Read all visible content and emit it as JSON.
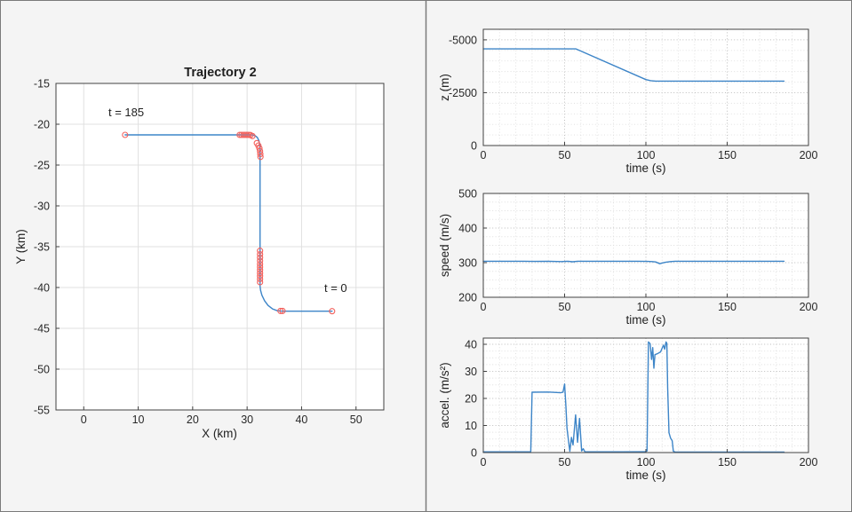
{
  "figure": {
    "background": "#f4f4f4",
    "border_color": "#7a7a7a",
    "divider_color": "#7a7a7a"
  },
  "colors": {
    "line_blue": "#3d85c8",
    "marker_red": "#f2605c",
    "text": "#282828",
    "spine": "#424242",
    "grid_solid": "#e0e0e0",
    "grid_major_dotted": "#bdbdbd",
    "grid_minor_dotted": "#dedede",
    "plot_bg": "#ffffff"
  },
  "chart_data": [
    {
      "id": "trajectory",
      "type": "line",
      "title": "Trajectory 2",
      "xlabel": "X (km)",
      "ylabel": "Y (km)",
      "xlim": [
        -5.1,
        55.1
      ],
      "ylim": [
        -55,
        -15
      ],
      "xticks": [
        0,
        10,
        20,
        30,
        40,
        50
      ],
      "yticks": [
        -55,
        -50,
        -45,
        -40,
        -35,
        -30,
        -25,
        -20,
        -15
      ],
      "grid": "solid",
      "annotations": [
        {
          "text": "t = 185",
          "x": 4.5,
          "y": -19.0
        },
        {
          "text": "t = 0",
          "x": 44.2,
          "y": -40.5
        }
      ],
      "path_xy": [
        [
          45.6,
          -42.9
        ],
        [
          36.5,
          -42.9
        ],
        [
          35.55,
          -42.85
        ],
        [
          34.65,
          -42.62
        ],
        [
          33.85,
          -42.2
        ],
        [
          33.2,
          -41.62
        ],
        [
          32.72,
          -40.95
        ],
        [
          32.47,
          -40.35
        ],
        [
          32.38,
          -39.8
        ],
        [
          32.38,
          -23.05
        ],
        [
          32.33,
          -22.5
        ],
        [
          32.17,
          -22.0
        ],
        [
          31.88,
          -21.62
        ],
        [
          31.48,
          -21.4
        ],
        [
          31.0,
          -21.32
        ],
        [
          30.5,
          -21.3
        ],
        [
          7.6,
          -21.3
        ]
      ],
      "markers_xy": [
        [
          45.6,
          -42.9
        ],
        [
          36.5,
          -42.87
        ],
        [
          36.12,
          -42.87
        ],
        [
          32.38,
          -39.35
        ],
        [
          32.38,
          -38.97
        ],
        [
          32.38,
          -38.6
        ],
        [
          32.38,
          -38.23
        ],
        [
          32.38,
          -37.86
        ],
        [
          32.38,
          -37.49
        ],
        [
          32.38,
          -37.12
        ],
        [
          32.38,
          -36.73
        ],
        [
          32.38,
          -36.33
        ],
        [
          32.38,
          -35.92
        ],
        [
          32.38,
          -35.5
        ],
        [
          32.46,
          -24.0
        ],
        [
          32.43,
          -23.65
        ],
        [
          32.38,
          -23.3
        ],
        [
          32.26,
          -22.95
        ],
        [
          32.06,
          -22.62
        ],
        [
          31.78,
          -22.32
        ],
        [
          30.97,
          -21.45
        ],
        [
          30.62,
          -21.33
        ],
        [
          30.29,
          -21.3
        ],
        [
          29.96,
          -21.3
        ],
        [
          29.63,
          -21.3
        ],
        [
          29.3,
          -21.3
        ],
        [
          28.97,
          -21.3
        ],
        [
          28.64,
          -21.3
        ],
        [
          7.6,
          -21.3
        ]
      ]
    },
    {
      "id": "z",
      "type": "line",
      "xlabel": "time (s)",
      "ylabel": "z (m)",
      "xlim": [
        0,
        200
      ],
      "ylim": [
        0,
        -5500
      ],
      "xticks": [
        0,
        50,
        100,
        150,
        200
      ],
      "yticks": [
        0,
        -2500,
        -5000
      ],
      "grid": "dotted",
      "minor_x": 10,
      "minor_y": 500,
      "points": [
        [
          0,
          -4572
        ],
        [
          57,
          -4572
        ],
        [
          100,
          -3120
        ],
        [
          103,
          -3070
        ],
        [
          106,
          -3048
        ],
        [
          185,
          -3048
        ]
      ]
    },
    {
      "id": "speed",
      "type": "line",
      "xlabel": "time (s)",
      "ylabel": "speed (m/s)",
      "xlim": [
        0,
        200
      ],
      "ylim": [
        200,
        500
      ],
      "xticks": [
        0,
        50,
        100,
        150,
        200
      ],
      "yticks": [
        200,
        300,
        400,
        500
      ],
      "grid": "dotted",
      "minor_x": 10,
      "minor_y": 25,
      "points": [
        [
          0,
          304
        ],
        [
          25,
          304
        ],
        [
          30,
          303.5
        ],
        [
          40,
          304
        ],
        [
          48,
          303
        ],
        [
          52,
          304
        ],
        [
          55,
          302.5
        ],
        [
          58,
          304
        ],
        [
          70,
          304
        ],
        [
          95,
          304
        ],
        [
          101,
          303.5
        ],
        [
          104,
          303
        ],
        [
          106,
          302
        ],
        [
          108.5,
          296.8
        ],
        [
          110,
          299
        ],
        [
          112,
          301
        ],
        [
          115,
          303
        ],
        [
          118,
          304
        ],
        [
          185,
          304
        ]
      ]
    },
    {
      "id": "accel",
      "type": "line",
      "xlabel": "time (s)",
      "ylabel": "accel. (m/s²)",
      "xlim": [
        0,
        200
      ],
      "ylim": [
        0,
        42.3
      ],
      "xticks": [
        0,
        50,
        100,
        150,
        200
      ],
      "yticks": [
        0,
        10,
        20,
        30,
        40
      ],
      "grid": "dotted",
      "minor_x": 10,
      "minor_y": 2.5,
      "points": [
        [
          0,
          0.25
        ],
        [
          28.8,
          0.25
        ],
        [
          29.2,
          0.3
        ],
        [
          30,
          22.3
        ],
        [
          40,
          22.35
        ],
        [
          47.5,
          22.1
        ],
        [
          49,
          22.3
        ],
        [
          50,
          25.3
        ],
        [
          50.8,
          17
        ],
        [
          51.5,
          9
        ],
        [
          52.3,
          4.9
        ],
        [
          53.2,
          0.5
        ],
        [
          54.2,
          5.6
        ],
        [
          55.2,
          2.8
        ],
        [
          56.8,
          13.9
        ],
        [
          58,
          3.8
        ],
        [
          59.2,
          12.6
        ],
        [
          60.5,
          0.6
        ],
        [
          61.5,
          1.4
        ],
        [
          62.5,
          0.25
        ],
        [
          85,
          0.25
        ],
        [
          99.5,
          0.3
        ],
        [
          100.7,
          0.6
        ],
        [
          101.6,
          40.9
        ],
        [
          102.6,
          40.2
        ],
        [
          103.5,
          34.4
        ],
        [
          104.2,
          38.8
        ],
        [
          104.9,
          31.2
        ],
        [
          105.6,
          36.2
        ],
        [
          107,
          36.5
        ],
        [
          109,
          37.2
        ],
        [
          110.8,
          39.7
        ],
        [
          111.6,
          38.2
        ],
        [
          112.4,
          40.9
        ],
        [
          112.9,
          40.3
        ],
        [
          113.4,
          24
        ],
        [
          114.2,
          7.3
        ],
        [
          115.2,
          5.3
        ],
        [
          116.2,
          4.4
        ],
        [
          116.9,
          0.5
        ],
        [
          118,
          0.2
        ],
        [
          185,
          0.2
        ]
      ]
    }
  ]
}
